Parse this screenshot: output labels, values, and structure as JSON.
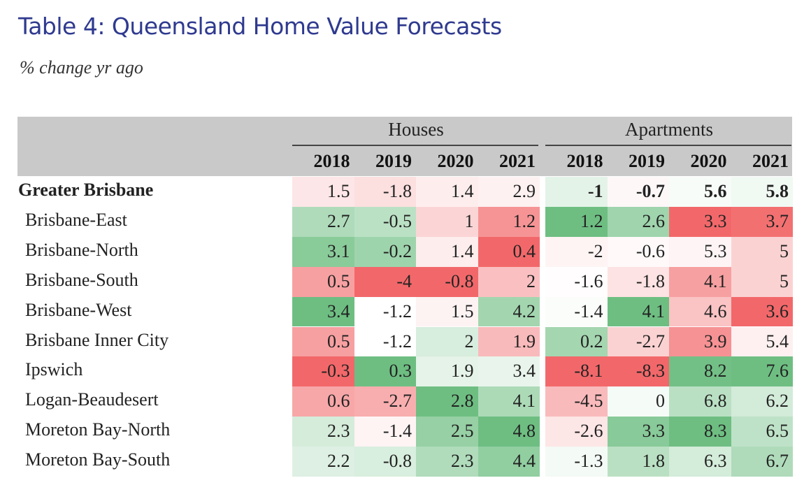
{
  "title": "Table 4: Queensland Home Value Forecasts",
  "subtitle": "% change yr ago",
  "table": {
    "groups": [
      {
        "name": "Houses",
        "columns": [
          "2018",
          "2019",
          "2020",
          "2021"
        ]
      },
      {
        "name": "Apartments",
        "columns": [
          "2018",
          "2019",
          "2020",
          "2021"
        ]
      }
    ],
    "rows": [
      {
        "label": "Greater Brisbane",
        "values": [
          1.5,
          -1.8,
          1.4,
          2.9,
          -1,
          -0.7,
          5.6,
          5.8
        ]
      },
      {
        "label": "Brisbane-East",
        "values": [
          2.7,
          -0.5,
          1,
          1.2,
          1.2,
          2.6,
          3.3,
          3.7
        ]
      },
      {
        "label": "Brisbane-North",
        "values": [
          3.1,
          -0.2,
          1.4,
          0.4,
          -2,
          -0.6,
          5.3,
          5
        ]
      },
      {
        "label": "Brisbane-South",
        "values": [
          0.5,
          -4,
          -0.8,
          2,
          -1.6,
          -1.8,
          4.1,
          5
        ]
      },
      {
        "label": "Brisbane-West",
        "values": [
          3.4,
          -1.2,
          1.5,
          4.2,
          -1.4,
          4.1,
          4.6,
          3.6
        ]
      },
      {
        "label": "Brisbane Inner City",
        "values": [
          0.5,
          -1.2,
          2,
          1.9,
          0.2,
          -2.7,
          3.9,
          5.4
        ]
      },
      {
        "label": "Ipswich",
        "values": [
          -0.3,
          0.3,
          1.9,
          3.4,
          -8.1,
          -8.3,
          8.2,
          7.6
        ]
      },
      {
        "label": "Logan-Beaudesert",
        "values": [
          0.6,
          -2.7,
          2.8,
          4.1,
          -4.5,
          0,
          6.8,
          6.2
        ]
      },
      {
        "label": "Moreton Bay-North",
        "values": [
          2.3,
          -1.4,
          2.5,
          4.8,
          -2.6,
          3.3,
          8.3,
          6.5
        ]
      },
      {
        "label": "Moreton Bay-South",
        "values": [
          2.2,
          -0.8,
          2.3,
          4.4,
          -1.3,
          1.8,
          6.3,
          6.7
        ]
      }
    ]
  }
}
